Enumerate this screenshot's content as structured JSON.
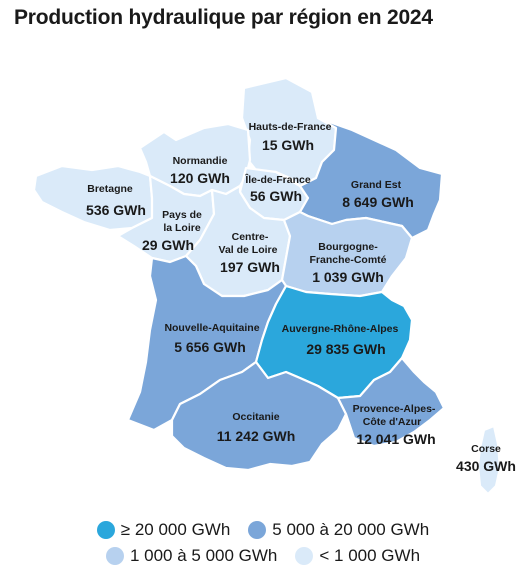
{
  "title": "Production hydraulique par région en 2024",
  "colors": {
    "c1": "#2ba7dc",
    "c2": "#7ba6d9",
    "c3": "#b7d1ef",
    "c4": "#daeaf9"
  },
  "regions": {
    "hauts_de_france": {
      "name": "Hauts-de-France",
      "value": "15 GWh",
      "class": "c4"
    },
    "normandie": {
      "name": "Normandie",
      "value": "120 GWh",
      "class": "c4"
    },
    "ile_de_france": {
      "name": "Île-de-France",
      "value": "56 GWh",
      "class": "c4"
    },
    "grand_est": {
      "name": "Grand Est",
      "value": "8 649 GWh",
      "class": "c2"
    },
    "bretagne": {
      "name": "Bretagne",
      "value": "536 GWh",
      "class": "c4"
    },
    "pays_de_la_loire": {
      "name_line1": "Pays de",
      "name_line2": "la Loire",
      "value": "29 GWh",
      "class": "c4"
    },
    "centre_val_de_loire": {
      "name_line1": "Centre-",
      "name_line2": "Val de Loire",
      "value": "197 GWh",
      "class": "c4"
    },
    "bourgogne_franche_comte": {
      "name_line1": "Bourgogne-",
      "name_line2": "Franche-Comté",
      "value": "1 039 GWh",
      "class": "c3"
    },
    "nouvelle_aquitaine": {
      "name": "Nouvelle-Aquitaine",
      "value": "5 656 GWh",
      "class": "c2"
    },
    "auvergne_rhone_alpes": {
      "name": "Auvergne-Rhône-Alpes",
      "value": "29 835 GWh",
      "class": "c1"
    },
    "occitanie": {
      "name": "Occitanie",
      "value": "11 242 GWh",
      "class": "c2"
    },
    "paca": {
      "name_line1": "Provence-Alpes-",
      "name_line2": "Côte d'Azur",
      "value": "12 041 GWh",
      "class": "c2"
    },
    "corse": {
      "name": "Corse",
      "value": "430 GWh",
      "class": "c4"
    }
  },
  "legend": [
    {
      "label": "≥ 20 000 GWh",
      "color": "#2ba7dc"
    },
    {
      "label": "5 000 à 20 000 GWh",
      "color": "#7ba6d9"
    },
    {
      "label": "1 000 à 5 000 GWh",
      "color": "#b7d1ef"
    },
    {
      "label": "< 1 000 GWh",
      "color": "#daeaf9"
    }
  ]
}
